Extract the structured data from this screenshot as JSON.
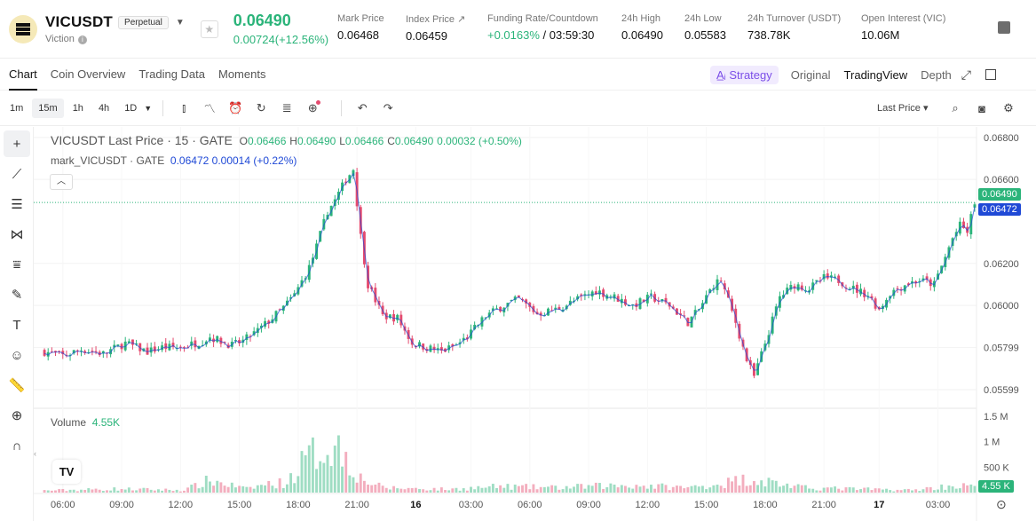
{
  "header": {
    "symbol": "VICUSDT",
    "badge": "Perpetual",
    "subname": "Viction",
    "last_price": "0.06490",
    "price_change": "0.00724(+12.56%)",
    "stats": [
      {
        "label": "Mark Price",
        "value": "0.06468"
      },
      {
        "label": "Index Price ↗",
        "value": "0.06459"
      },
      {
        "label": "Funding Rate/Countdown",
        "value_rate": "+0.0163%",
        "value_time": " / 03:59:30"
      },
      {
        "label": "24h High",
        "value": "0.06490"
      },
      {
        "label": "24h Low",
        "value": "0.05583"
      },
      {
        "label": "24h Turnover (USDT)",
        "value": "738.78K"
      },
      {
        "label": "Open Interest (VIC)",
        "value": "10.06M"
      }
    ]
  },
  "tabs": [
    "Chart",
    "Coin Overview",
    "Trading Data",
    "Moments"
  ],
  "view_options": {
    "strategy": "Strategy",
    "original": "Original",
    "tradingview": "TradingView",
    "depth": "Depth"
  },
  "toolbar": {
    "timeframes": [
      "1m",
      "15m",
      "1h",
      "4h",
      "1D"
    ],
    "active_timeframe": "15m",
    "price_type": "Last Price"
  },
  "legend": {
    "title": "VICUSDT Last Price · 15 · GATE",
    "o_label": "O",
    "o": "0.06466",
    "h_label": "H",
    "h": "0.06490",
    "l_label": "L",
    "l": "0.06466",
    "c_label": "C",
    "c": "0.06490",
    "change": "0.00032 (+0.50%)",
    "mark_label": "mark_VICUSDT · GATE",
    "mark_value": "0.06472",
    "mark_change": "0.00014 (+0.22%)"
  },
  "volume": {
    "label": "Volume",
    "value": "4.55K"
  },
  "colors": {
    "up": "#2bb47a",
    "down": "#e44b6f",
    "accent": "#7b4ee8",
    "mark": "#1f49d6"
  },
  "chart_data": {
    "type": "candlestick",
    "price_ticks": [
      "0.06800",
      "0.06600",
      "0.06490",
      "0.06472",
      "0.06200",
      "0.06000",
      "0.05799",
      "0.05599"
    ],
    "volume_ticks": [
      "1.5 M",
      "1 M",
      "500 K",
      "4.55 K"
    ],
    "time_ticks": [
      "06:00",
      "09:00",
      "12:00",
      "15:00",
      "18:00",
      "21:00",
      "16",
      "03:00",
      "06:00",
      "09:00",
      "12:00",
      "15:00",
      "18:00",
      "21:00",
      "17",
      "03:00"
    ],
    "last_price": 0.0649,
    "mark_price": 0.06472,
    "price_range": [
      0.0551,
      0.0685
    ],
    "volume_range": [
      0,
      1600000
    ],
    "close_path": [
      [
        0,
        0.0578
      ],
      [
        5,
        0.0576
      ],
      [
        10,
        0.0579
      ],
      [
        16,
        0.0577
      ],
      [
        22,
        0.0582
      ],
      [
        28,
        0.0578
      ],
      [
        32,
        0.058
      ],
      [
        37,
        0.058
      ],
      [
        43,
        0.0583
      ],
      [
        45,
        0.0585
      ],
      [
        51,
        0.0581
      ],
      [
        54,
        0.0583
      ],
      [
        58,
        0.0588
      ],
      [
        62,
        0.0594
      ],
      [
        65,
        0.0599
      ],
      [
        68,
        0.0605
      ],
      [
        72,
        0.0618
      ],
      [
        74,
        0.0628
      ],
      [
        77,
        0.0645
      ],
      [
        79,
        0.065
      ],
      [
        82,
        0.066
      ],
      [
        84,
        0.0665
      ],
      [
        86,
        0.0633
      ],
      [
        88,
        0.061
      ],
      [
        92,
        0.0595
      ],
      [
        96,
        0.0594
      ],
      [
        100,
        0.0582
      ],
      [
        104,
        0.058
      ],
      [
        108,
        0.0578
      ],
      [
        112,
        0.0581
      ],
      [
        115,
        0.0585
      ],
      [
        120,
        0.0595
      ],
      [
        125,
        0.06
      ],
      [
        129,
        0.0603
      ],
      [
        134,
        0.0596
      ],
      [
        139,
        0.0598
      ],
      [
        144,
        0.0602
      ],
      [
        150,
        0.0607
      ],
      [
        155,
        0.0604
      ],
      [
        160,
        0.06
      ],
      [
        165,
        0.0604
      ],
      [
        170,
        0.06
      ],
      [
        175,
        0.0592
      ],
      [
        178,
        0.0598
      ],
      [
        182,
        0.061
      ],
      [
        184,
        0.0612
      ],
      [
        188,
        0.0592
      ],
      [
        191,
        0.0574
      ],
      [
        193,
        0.0566
      ],
      [
        196,
        0.0582
      ],
      [
        200,
        0.0604
      ],
      [
        204,
        0.061
      ],
      [
        208,
        0.0608
      ],
      [
        212,
        0.0613
      ],
      [
        216,
        0.0612
      ],
      [
        220,
        0.0608
      ],
      [
        224,
        0.0605
      ],
      [
        227,
        0.0598
      ],
      [
        230,
        0.0606
      ],
      [
        234,
        0.061
      ],
      [
        238,
        0.0612
      ],
      [
        242,
        0.061
      ],
      [
        245,
        0.0623
      ],
      [
        247,
        0.0632
      ],
      [
        249,
        0.0638
      ],
      [
        251,
        0.0635
      ],
      [
        253,
        0.0649
      ]
    ],
    "volume_profile": [
      [
        0,
        50000
      ],
      [
        20,
        90000
      ],
      [
        38,
        60000
      ],
      [
        45,
        300000
      ],
      [
        55,
        90000
      ],
      [
        60,
        200000
      ],
      [
        66,
        250000
      ],
      [
        70,
        700000
      ],
      [
        74,
        1000000
      ],
      [
        78,
        1200000
      ],
      [
        82,
        950000
      ],
      [
        86,
        350000
      ],
      [
        92,
        120000
      ],
      [
        110,
        80000
      ],
      [
        124,
        150000
      ],
      [
        140,
        120000
      ],
      [
        150,
        160000
      ],
      [
        160,
        180000
      ],
      [
        175,
        120000
      ],
      [
        184,
        220000
      ],
      [
        192,
        350000
      ],
      [
        198,
        250000
      ],
      [
        206,
        120000
      ],
      [
        220,
        90000
      ],
      [
        236,
        60000
      ],
      [
        246,
        160000
      ],
      [
        253,
        160000
      ]
    ]
  }
}
